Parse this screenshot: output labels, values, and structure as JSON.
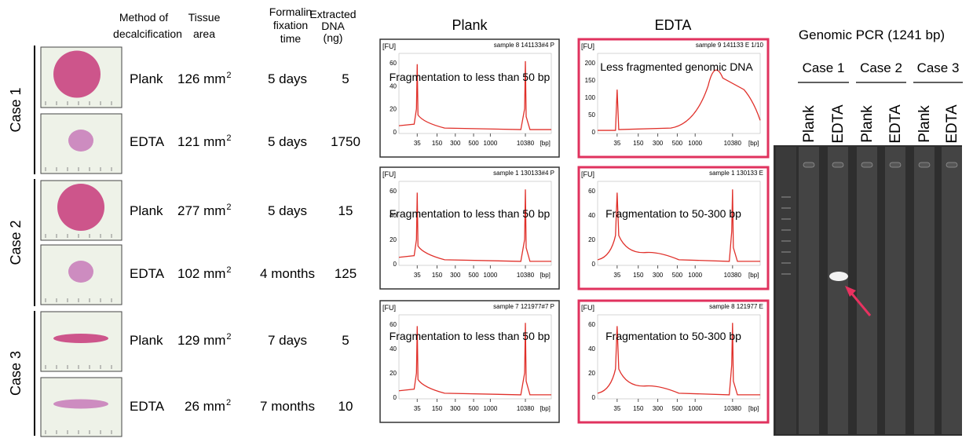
{
  "header": {
    "method": [
      "Method of",
      "decalcification"
    ],
    "area": [
      "Tissue",
      "area"
    ],
    "time": [
      "Formalin",
      "fixation",
      "time"
    ],
    "dna": [
      "Extracted",
      "DNA",
      "(ng)"
    ],
    "plank": "Plank",
    "edta": "EDTA",
    "pcr": "Genomic PCR (1241 bp)"
  },
  "cases": [
    "Case 1",
    "Case 2",
    "Case 3"
  ],
  "rows": [
    {
      "method": "Plank",
      "area": "126 mm",
      "exp": "2",
      "time": "5 days",
      "dna": "5"
    },
    {
      "method": "EDTA",
      "area": "121 mm",
      "exp": "2",
      "time": "5 days",
      "dna": "1750"
    },
    {
      "method": "Plank",
      "area": "277 mm",
      "exp": "2",
      "time": "5 days",
      "dna": "15"
    },
    {
      "method": "EDTA",
      "area": "102 mm",
      "exp": "2",
      "time": "4 months",
      "dna": "125"
    },
    {
      "method": "Plank",
      "area": "129 mm",
      "exp": "2",
      "time": "7 days",
      "dna": "5"
    },
    {
      "method": "EDTA",
      "area": "26 mm",
      "exp": "2",
      "time": "7 months",
      "dna": "10"
    }
  ],
  "panels": [
    {
      "sample": "sample 8 141133#4 P",
      "note": "Fragmentation to less than 50 bp",
      "fu": "[FU]",
      "yticks": [
        "60",
        "40",
        "20",
        "0"
      ],
      "xticks": [
        "35",
        "150",
        "300",
        "500",
        "1000",
        "10380",
        "[bp]"
      ]
    },
    {
      "sample": "sample 9 141133 E 1/10",
      "note": "Less fragmented genomic DNA",
      "fu": "[FU]",
      "yticks": [
        "200",
        "150",
        "100",
        "50",
        "0"
      ],
      "xticks": [
        "35",
        "150",
        "300",
        "500",
        "1000",
        "10380",
        "[bp]"
      ]
    },
    {
      "sample": "sample 1 130133#4 P",
      "note": "Fragmentation to less than 50 bp",
      "fu": "[FU]",
      "yticks": [
        "60",
        "40",
        "20",
        "0"
      ],
      "xticks": [
        "35",
        "150",
        "300",
        "500",
        "1000",
        "10380",
        "[bp]"
      ]
    },
    {
      "sample": "sample 1 130133 E",
      "note": "Fragmentation to 50-300 bp",
      "fu": "[FU]",
      "yticks": [
        "60",
        "40",
        "20",
        "0"
      ],
      "xticks": [
        "35",
        "150",
        "300",
        "500",
        "1000",
        "10380",
        "[bp]"
      ]
    },
    {
      "sample": "sample 7 121977#7 P",
      "note": "Fragmentation to less than 50 bp",
      "fu": "[FU]",
      "yticks": [
        "60",
        "40",
        "20",
        "0"
      ],
      "xticks": [
        "35",
        "150",
        "300",
        "500",
        "1000",
        "10380",
        "[bp]"
      ]
    },
    {
      "sample": "sample 8 121977 E",
      "note": "Fragmentation to 50-300 bp",
      "fu": "[FU]",
      "yticks": [
        "60",
        "40",
        "20",
        "0"
      ],
      "xticks": [
        "35",
        "150",
        "300",
        "500",
        "1000",
        "10380",
        "[bp]"
      ]
    }
  ],
  "gel": {
    "cases": [
      "Case 1",
      "Case 2",
      "Case 3"
    ],
    "lanes": [
      "Plank",
      "EDTA",
      "Plank",
      "EDTA",
      "Plank",
      "EDTA"
    ]
  }
}
